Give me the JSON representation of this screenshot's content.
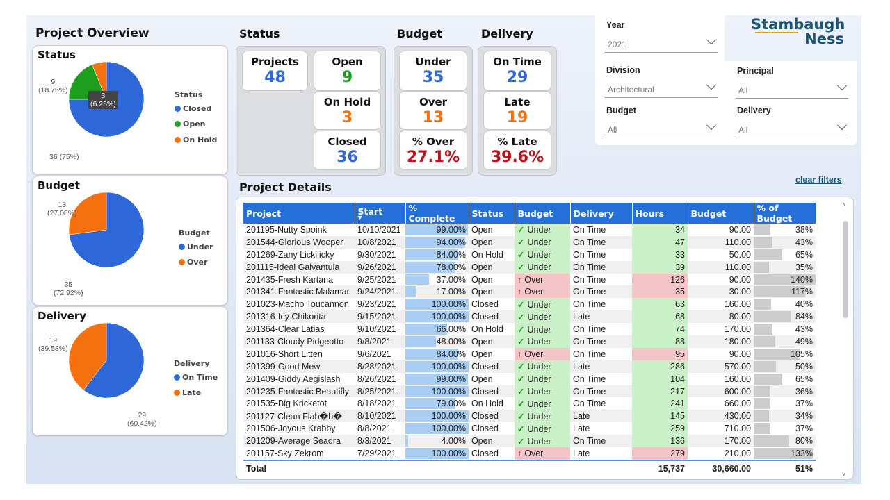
{
  "page_title": "Project Overview",
  "logo": {
    "line1": "Stambaugh",
    "line2": "Ness"
  },
  "clear_filters": "clear filters",
  "pies": [
    {
      "title": "Status",
      "legend_title": "Status",
      "slices": [
        {
          "name": "Closed",
          "value": 36,
          "color": "#2e67d8"
        },
        {
          "name": "Open",
          "value": 9,
          "color": "#1e9e1e"
        },
        {
          "name": "On Hold",
          "value": 3,
          "color": "#f5700f"
        }
      ],
      "labels": [
        {
          "count": "36",
          "pct": "(75%)",
          "text": "36 (75%)"
        },
        {
          "count": "9",
          "pct": "(18.75%)"
        },
        {
          "count": "3",
          "pct": "(6.25%)"
        }
      ]
    },
    {
      "title": "Budget",
      "legend_title": "Budget",
      "slices": [
        {
          "name": "Under",
          "value": 35,
          "color": "#2e67d8"
        },
        {
          "name": "Over",
          "value": 13,
          "color": "#f5700f"
        }
      ],
      "labels": [
        {
          "count": "35",
          "pct": "(72.92%)"
        },
        {
          "count": "13",
          "pct": "(27.08%)"
        }
      ]
    },
    {
      "title": "Delivery",
      "legend_title": "Delivery",
      "slices": [
        {
          "name": "On Time",
          "value": 29,
          "color": "#2e67d8"
        },
        {
          "name": "Late",
          "value": 19,
          "color": "#f5700f"
        }
      ],
      "labels": [
        {
          "count": "29",
          "pct": "(60.42%)"
        },
        {
          "count": "19",
          "pct": "(39.58%)"
        }
      ]
    }
  ],
  "kpi": {
    "status_heading": "Status",
    "budget_heading": "Budget",
    "delivery_heading": "Delivery",
    "projects": {
      "label": "Projects",
      "value": "48"
    },
    "open": {
      "label": "Open",
      "value": "9"
    },
    "on_hold": {
      "label": "On Hold",
      "value": "3"
    },
    "closed": {
      "label": "Closed",
      "value": "36"
    },
    "under": {
      "label": "Under",
      "value": "35"
    },
    "over": {
      "label": "Over",
      "value": "13"
    },
    "pct_over": {
      "label": "% Over",
      "value": "27.1%"
    },
    "on_time": {
      "label": "On Time",
      "value": "29"
    },
    "late": {
      "label": "Late",
      "value": "19"
    },
    "pct_late": {
      "label": "% Late",
      "value": "39.6%"
    }
  },
  "filters": {
    "year": {
      "label": "Year",
      "value": "2021"
    },
    "division": {
      "label": "Division",
      "value": "Architectural"
    },
    "principal": {
      "label": "Principal",
      "value": "All"
    },
    "budget": {
      "label": "Budget",
      "value": "All"
    },
    "delivery": {
      "label": "Delivery",
      "value": "All"
    }
  },
  "colors": {
    "accent": "#2470d8",
    "blue_value": "#2e67d8",
    "green_value": "#1e9e1e",
    "orange_value": "#f5700f",
    "red_value": "#c0121b"
  },
  "table": {
    "heading": "Project Details",
    "columns": [
      "Project",
      "Start",
      "% Complete",
      "Status",
      "Budget",
      "Delivery",
      "Hours",
      "Budget",
      "% of Budget"
    ],
    "rows": [
      {
        "project": "201195-Nutty Spoink",
        "start": "10/10/2021",
        "complete": "99.00%",
        "pct": 0.99,
        "status": "Open",
        "budget_status": "Under",
        "delivery": "On Time",
        "hours": "34",
        "budget": "90.00",
        "of_budget": "38%",
        "ob": 0.38
      },
      {
        "project": "201544-Glorious Wooper",
        "start": "10/8/2021",
        "complete": "94.00%",
        "pct": 0.94,
        "status": "Open",
        "budget_status": "Under",
        "delivery": "On Time",
        "hours": "47",
        "budget": "110.00",
        "of_budget": "43%",
        "ob": 0.43
      },
      {
        "project": "201269-Zany Lickilicky",
        "start": "9/30/2021",
        "complete": "84.00%",
        "pct": 0.84,
        "status": "On Hold",
        "budget_status": "Under",
        "delivery": "On Time",
        "hours": "33",
        "budget": "50.00",
        "of_budget": "65%",
        "ob": 0.65
      },
      {
        "project": "201115-Ideal Galvantula",
        "start": "9/26/2021",
        "complete": "78.00%",
        "pct": 0.78,
        "status": "Open",
        "budget_status": "Under",
        "delivery": "On Time",
        "hours": "39",
        "budget": "110.00",
        "of_budget": "35%",
        "ob": 0.35
      },
      {
        "project": "201435-Fresh Kartana",
        "start": "9/25/2021",
        "complete": "37.00%",
        "pct": 0.37,
        "status": "Open",
        "budget_status": "Over",
        "delivery": "On Time",
        "hours": "126",
        "budget": "90.00",
        "of_budget": "140%",
        "ob": 1.4
      },
      {
        "project": "201341-Fantastic Malamar",
        "start": "9/24/2021",
        "complete": "17.00%",
        "pct": 0.17,
        "status": "Open",
        "budget_status": "Over",
        "delivery": "On Time",
        "hours": "35",
        "budget": "30.00",
        "of_budget": "117%",
        "ob": 1.17
      },
      {
        "project": "201023-Macho Toucannon",
        "start": "9/23/2021",
        "complete": "100.00%",
        "pct": 1.0,
        "status": "Closed",
        "budget_status": "Under",
        "delivery": "On Time",
        "hours": "63",
        "budget": "160.00",
        "of_budget": "40%",
        "ob": 0.4
      },
      {
        "project": "201316-Icy Chikorita",
        "start": "9/15/2021",
        "complete": "100.00%",
        "pct": 1.0,
        "status": "Closed",
        "budget_status": "Under",
        "delivery": "Late",
        "hours": "68",
        "budget": "80.00",
        "of_budget": "84%",
        "ob": 0.84
      },
      {
        "project": "201364-Clear Latias",
        "start": "9/10/2021",
        "complete": "66.00%",
        "pct": 0.66,
        "status": "On Hold",
        "budget_status": "Under",
        "delivery": "On Time",
        "hours": "74",
        "budget": "170.00",
        "of_budget": "43%",
        "ob": 0.43
      },
      {
        "project": "201133-Cloudy Pidgeotto",
        "start": "9/8/2021",
        "complete": "48.00%",
        "pct": 0.48,
        "status": "Open",
        "budget_status": "Under",
        "delivery": "On Time",
        "hours": "88",
        "budget": "180.00",
        "of_budget": "49%",
        "ob": 0.49
      },
      {
        "project": "201016-Short Litten",
        "start": "9/6/2021",
        "complete": "84.00%",
        "pct": 0.84,
        "status": "Open",
        "budget_status": "Over",
        "delivery": "On Time",
        "hours": "95",
        "budget": "90.00",
        "of_budget": "105%",
        "ob": 1.05
      },
      {
        "project": "201399-Good Mew",
        "start": "8/28/2021",
        "complete": "100.00%",
        "pct": 1.0,
        "status": "Closed",
        "budget_status": "Under",
        "delivery": "Late",
        "hours": "286",
        "budget": "570.00",
        "of_budget": "50%",
        "ob": 0.5
      },
      {
        "project": "201409-Giddy Aegislash",
        "start": "8/26/2021",
        "complete": "99.00%",
        "pct": 0.99,
        "status": "Open",
        "budget_status": "Under",
        "delivery": "On Time",
        "hours": "104",
        "budget": "160.00",
        "of_budget": "65%",
        "ob": 0.65
      },
      {
        "project": "201235-Fantastic Beautifly",
        "start": "8/25/2021",
        "complete": "100.00%",
        "pct": 1.0,
        "status": "Closed",
        "budget_status": "Under",
        "delivery": "On Time",
        "hours": "217",
        "budget": "600.00",
        "of_budget": "36%",
        "ob": 0.36
      },
      {
        "project": "201535-Big Kricketot",
        "start": "8/18/2021",
        "complete": "79.00%",
        "pct": 0.79,
        "status": "On Hold",
        "budget_status": "Under",
        "delivery": "On Time",
        "hours": "241",
        "budget": "660.00",
        "of_budget": "37%",
        "ob": 0.37
      },
      {
        "project": "201127-Clean Flab�b�",
        "start": "8/10/2021",
        "complete": "100.00%",
        "pct": 1.0,
        "status": "Closed",
        "budget_status": "Under",
        "delivery": "Late",
        "hours": "145",
        "budget": "430.00",
        "of_budget": "34%",
        "ob": 0.34
      },
      {
        "project": "201506-Joyous Krabby",
        "start": "8/8/2021",
        "complete": "100.00%",
        "pct": 1.0,
        "status": "Closed",
        "budget_status": "Under",
        "delivery": "Late",
        "hours": "259",
        "budget": "710.00",
        "of_budget": "37%",
        "ob": 0.37
      },
      {
        "project": "201209-Average Seadra",
        "start": "8/3/2021",
        "complete": "4.00%",
        "pct": 0.04,
        "status": "Open",
        "budget_status": "Under",
        "delivery": "On Time",
        "hours": "136",
        "budget": "170.00",
        "of_budget": "80%",
        "ob": 0.8
      },
      {
        "project": "201157-Sky Zekrom",
        "start": "7/29/2021",
        "complete": "100.00%",
        "pct": 1.0,
        "status": "Closed",
        "budget_status": "Over",
        "delivery": "Late",
        "hours": "279",
        "budget": "210.00",
        "of_budget": "133%",
        "ob": 1.33
      }
    ],
    "total": {
      "label": "Total",
      "hours": "15,737",
      "budget": "30,660.00",
      "of_budget": "51%"
    }
  }
}
